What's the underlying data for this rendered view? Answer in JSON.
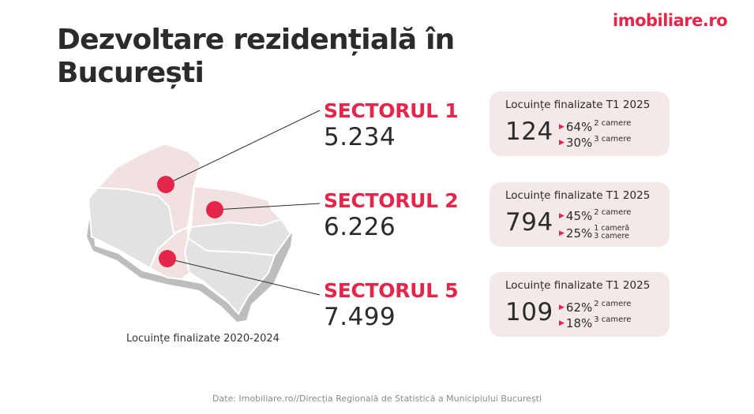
{
  "brand": {
    "logo": "imobiliare.ro"
  },
  "title": "Dezvoltare rezidențială în București",
  "map": {
    "caption": "Locuințe finalizate 2020-2024"
  },
  "sectors": [
    {
      "name": "SECTORUL 1",
      "value": "5.234",
      "card": {
        "title": "Locuințe finalizate T1 2025",
        "total": "124",
        "rows": [
          {
            "pct": "64%",
            "label": "2 camere"
          },
          {
            "pct": "30%",
            "label": "3 camere"
          }
        ]
      }
    },
    {
      "name": "SECTORUL 2",
      "value": "6.226",
      "card": {
        "title": "Locuințe finalizate T1 2025",
        "total": "794",
        "rows": [
          {
            "pct": "45%",
            "label": "2 camere"
          },
          {
            "pct": "25%",
            "label": "1 cameră",
            "label2": "3 camere"
          }
        ]
      }
    },
    {
      "name": "SECTORUL 5",
      "value": "7.499",
      "card": {
        "title": "Locuințe finalizate T1 2025",
        "total": "109",
        "rows": [
          {
            "pct": "62%",
            "label": "2 camere"
          },
          {
            "pct": "18%",
            "label": "3 camere"
          }
        ]
      }
    }
  ],
  "source": "Date: Imobiliare.ro//Direcția Regională de Statistică a Municipiului București",
  "colors": {
    "accent": "#e3264a",
    "card_bg": "#f3e9e8",
    "map_gray": "#e2e2e2",
    "map_highlight": "#f1e2e1"
  }
}
